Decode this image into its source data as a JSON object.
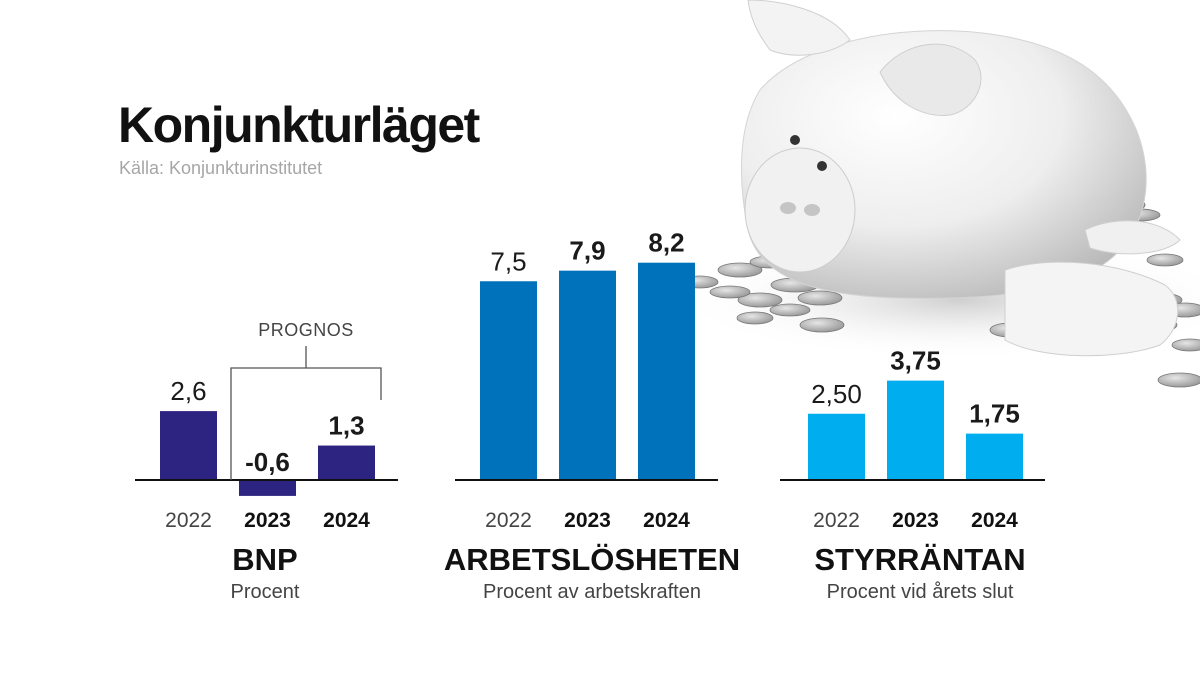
{
  "header": {
    "title": "Konjunkturläget",
    "source": "Källa: Konjunkturinstitutet"
  },
  "colors": {
    "bnp": "#2d2380",
    "arbetsloshet": "#0072bc",
    "styrranta": "#00aeef",
    "text": "#1a1a1a"
  },
  "background_image": "piggy-bank-with-coins",
  "chart_data": [
    {
      "type": "bar",
      "title": "BNP",
      "subtitle": "Procent",
      "categories": [
        "2022",
        "2023",
        "2024"
      ],
      "values": [
        2.6,
        -0.6,
        1.3
      ],
      "value_labels": [
        "2,6",
        "-0,6",
        "1,3"
      ],
      "bold_categories": [
        "2023",
        "2024"
      ],
      "annotation": {
        "text": "PROGNOS",
        "spans": [
          "2023",
          "2024"
        ]
      },
      "color": "#2d2380"
    },
    {
      "type": "bar",
      "title": "ARBETSLÖSHETEN",
      "subtitle": "Procent av arbetskraften",
      "categories": [
        "2022",
        "2023",
        "2024"
      ],
      "values": [
        7.5,
        7.9,
        8.2
      ],
      "value_labels": [
        "7,5",
        "7,9",
        "8,2"
      ],
      "bold_categories": [
        "2023",
        "2024"
      ],
      "color": "#0072bc"
    },
    {
      "type": "bar",
      "title": "STYRRÄNTAN",
      "subtitle": "Procent vid årets slut",
      "categories": [
        "2022",
        "2023",
        "2024"
      ],
      "values": [
        2.5,
        3.75,
        1.75
      ],
      "value_labels": [
        "2,50",
        "3,75",
        "1,75"
      ],
      "bold_categories": [
        "2023",
        "2024"
      ],
      "color": "#00aeef"
    }
  ]
}
